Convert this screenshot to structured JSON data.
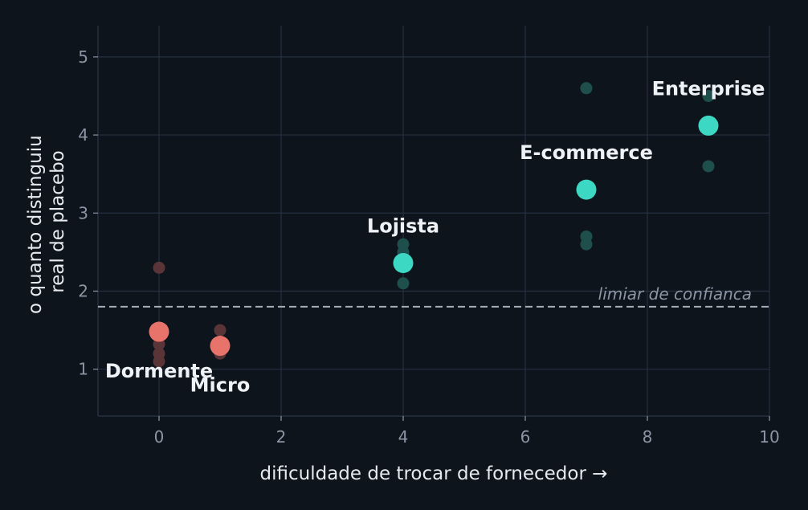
{
  "chart_data": {
    "type": "scatter",
    "xlabel": "dificuldade de trocar de fornecedor  →",
    "ylabel": [
      "o quanto distinguiu",
      "real de placebo"
    ],
    "xlim": [
      -1,
      10
    ],
    "ylim": [
      0.4,
      5.4
    ],
    "xticks": [
      0,
      2,
      4,
      6,
      8,
      10
    ],
    "yticks": [
      1,
      2,
      3,
      4,
      5
    ],
    "grid": true,
    "threshold": {
      "value": 1.8,
      "label": "limiar de confianca"
    },
    "colors": {
      "background": "#0e141c",
      "grid": "#263040",
      "low": "#e8736b",
      "high": "#3dd8c4",
      "low_faint": "#5a3538",
      "high_faint": "#1f4f4c",
      "threshold": "#a7aeb9"
    },
    "segments": [
      {
        "label": "Dormente",
        "x": 0,
        "y": 1.48,
        "group": "low",
        "points": [
          {
            "x": 0,
            "y": 2.3
          },
          {
            "x": 0,
            "y": 1.2
          },
          {
            "x": 0,
            "y": 1.1
          },
          {
            "x": 0,
            "y": 1.32
          }
        ]
      },
      {
        "label": "Micro",
        "x": 1,
        "y": 1.3,
        "group": "low",
        "points": [
          {
            "x": 1,
            "y": 1.5
          },
          {
            "x": 1,
            "y": 1.2
          }
        ]
      },
      {
        "label": "Lojista",
        "x": 4,
        "y": 2.36,
        "group": "high",
        "points": [
          {
            "x": 4,
            "y": 2.6
          },
          {
            "x": 4,
            "y": 2.5
          },
          {
            "x": 4,
            "y": 2.1
          }
        ]
      },
      {
        "label": "E-commerce",
        "x": 7,
        "y": 3.3,
        "group": "high",
        "points": [
          {
            "x": 7,
            "y": 4.6
          },
          {
            "x": 7,
            "y": 2.7
          },
          {
            "x": 7,
            "y": 2.6
          }
        ]
      },
      {
        "label": "Enterprise",
        "x": 9,
        "y": 4.12,
        "group": "high",
        "points": [
          {
            "x": 9,
            "y": 4.5
          },
          {
            "x": 9,
            "y": 3.6
          }
        ]
      }
    ]
  }
}
